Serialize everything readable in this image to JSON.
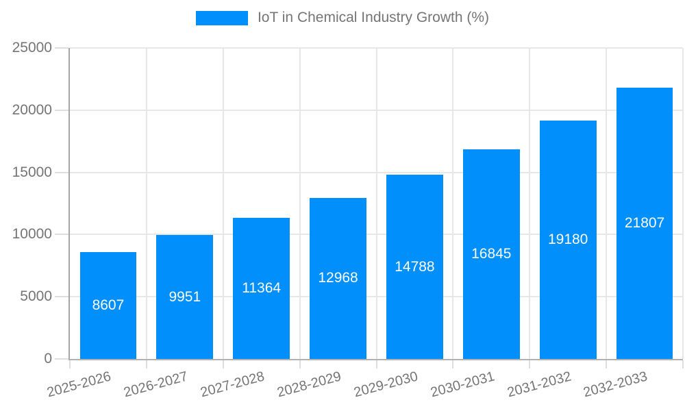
{
  "legend": {
    "label": "IoT in Chemical Industry Growth (%)",
    "swatch_color": "#008FFB"
  },
  "chart_data": {
    "type": "bar",
    "title": "IoT in Chemical Industry Growth (%)",
    "categories": [
      "2025-2026",
      "2026-2027",
      "2027-2028",
      "2028-2029",
      "2029-2030",
      "2030-2031",
      "2031-2032",
      "2032-2033"
    ],
    "values": [
      8607,
      9951,
      11364,
      12968,
      14788,
      16845,
      19180,
      21807
    ],
    "xlabel": "",
    "ylabel": "",
    "ylim": [
      0,
      25000
    ],
    "yticks": [
      0,
      5000,
      10000,
      15000,
      20000,
      25000
    ],
    "grid": "both",
    "legend_position": "top-center",
    "bar_color": "#008FFB",
    "value_label_style": "white, centered inside bar",
    "x_tick_rotation_deg": -15
  },
  "colors": {
    "bar": "#008FFB",
    "grid": "#e7e7e7",
    "axis_bottom": "#b1b1b1",
    "axis_left_spine": "#a6a6a6",
    "tick": "#dedede",
    "text": "#757575",
    "value_label": "#ffffff",
    "background": "#ffffff"
  }
}
